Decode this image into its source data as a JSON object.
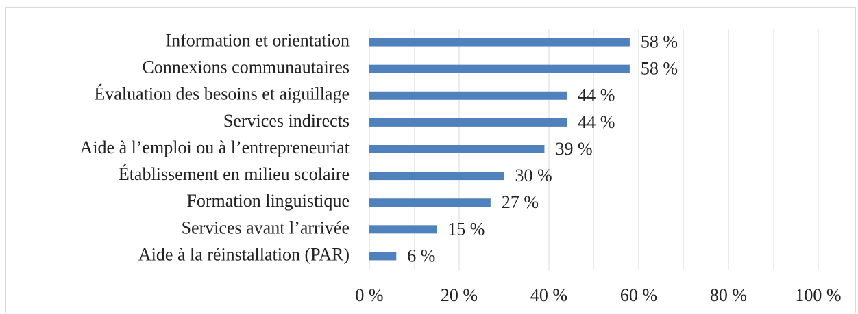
{
  "chart_data": {
    "type": "bar",
    "orientation": "horizontal",
    "categories": [
      "Information et orientation",
      "Connexions communautaires",
      "Évaluation des besoins et aiguillage",
      "Services indirects",
      "Aide à l’emploi ou à l’entrepreneuriat",
      "Établissement en milieu scolaire",
      "Formation linguistique",
      "Services avant l’arrivée",
      "Aide à la réinstallation (PAR)"
    ],
    "values": [
      58,
      58,
      44,
      44,
      39,
      30,
      27,
      15,
      6
    ],
    "value_labels": [
      "58 %",
      "58 %",
      "44 %",
      "44 %",
      "39 %",
      "30 %",
      "27 %",
      "15 %",
      "6 %"
    ],
    "color": "#4f81bd",
    "xlim": [
      0,
      100
    ],
    "xticks": [
      {
        "value": 0,
        "label": "0 %"
      },
      {
        "value": 20,
        "label": "20 %"
      },
      {
        "value": 40,
        "label": "40 %"
      },
      {
        "value": 60,
        "label": "60 %"
      },
      {
        "value": 80,
        "label": "80 %"
      },
      {
        "value": 100,
        "label": "100 %"
      }
    ],
    "minor_xticks": [
      10,
      30,
      50,
      70,
      90
    ],
    "grid": true
  }
}
